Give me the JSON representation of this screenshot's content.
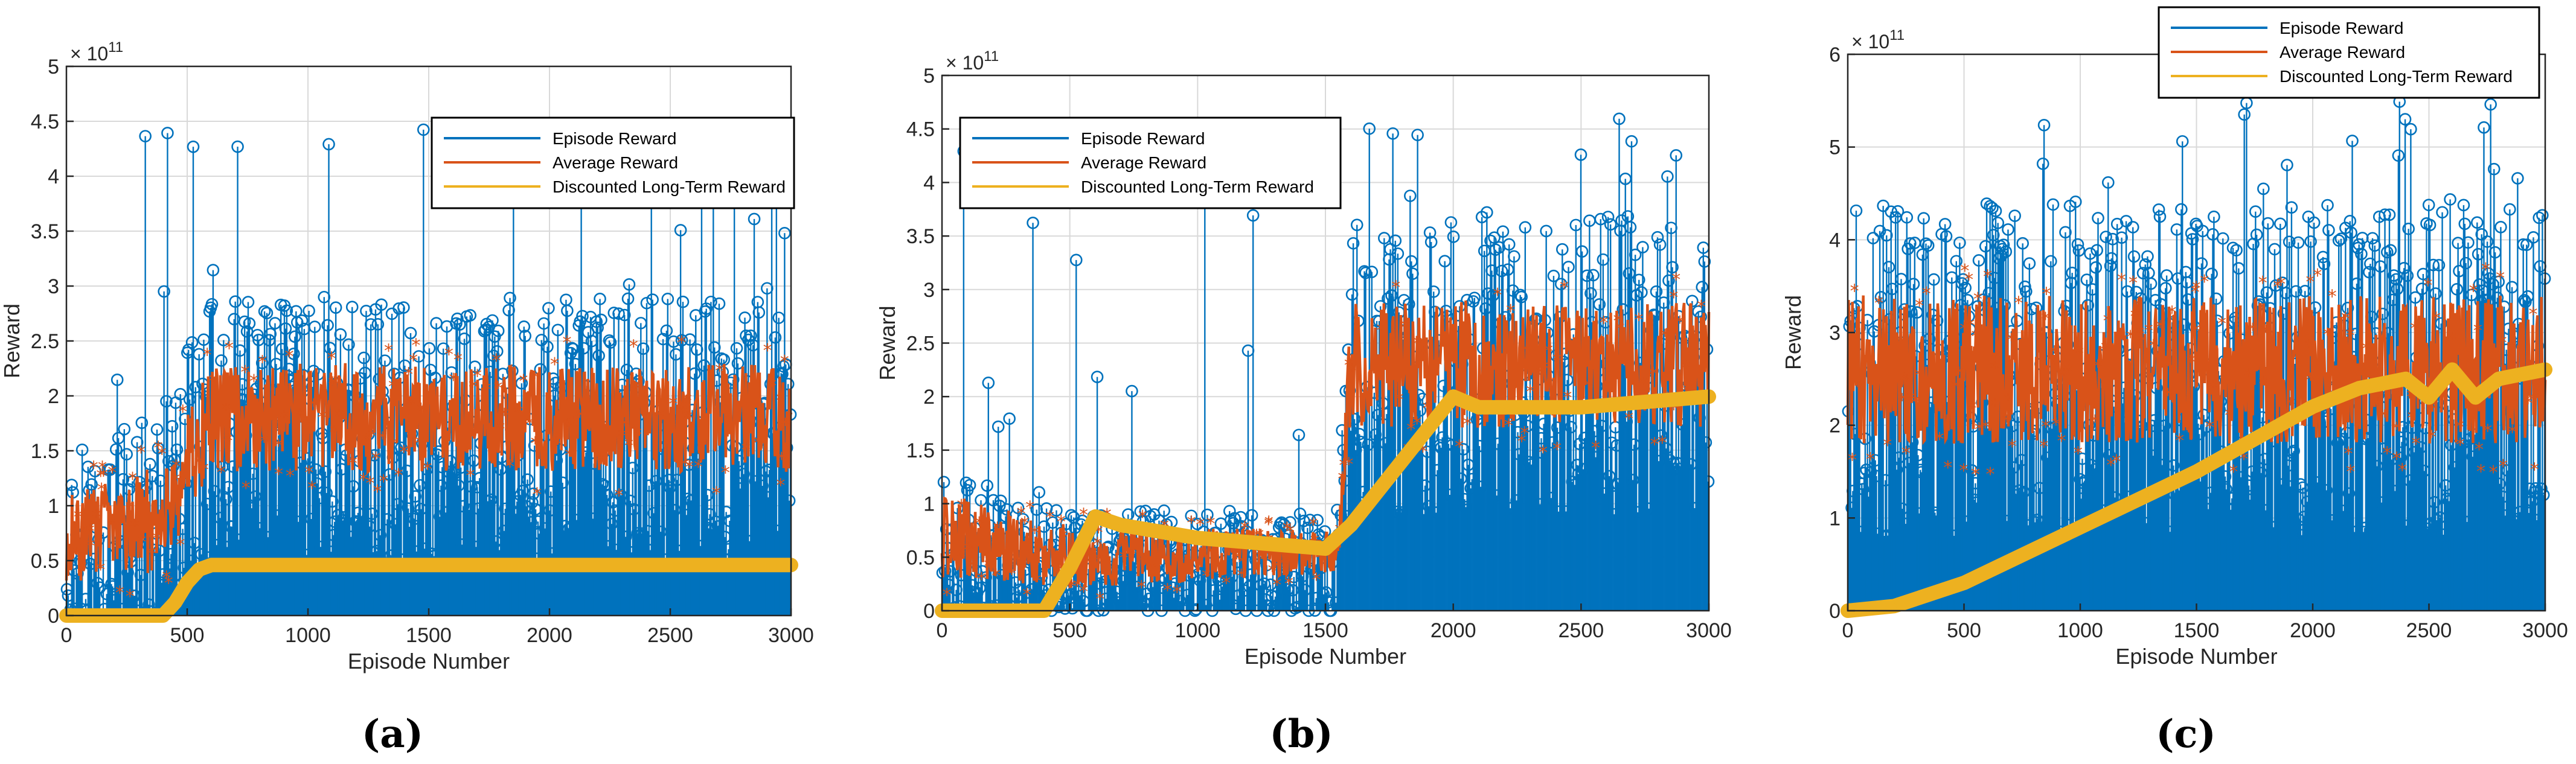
{
  "figure": {
    "panel_labels": [
      "(a)",
      "(b)",
      "(c)"
    ],
    "colors": {
      "episode": "#0072BD",
      "average": "#D95319",
      "discounted": "#EDB120",
      "axis": "#262626",
      "grid": "#d9d9d9"
    }
  },
  "chart_data": [
    {
      "type": "line",
      "panel": "(a)",
      "xlabel": "Episode Number",
      "ylabel": "Reward",
      "exponent_label": "× 10^11",
      "xlim": [
        0,
        3000
      ],
      "ylim": [
        0,
        5
      ],
      "xticks": [
        0,
        500,
        1000,
        1500,
        2000,
        2500,
        3000
      ],
      "xtick_labels": [
        "0",
        "500",
        "1000",
        "1500",
        "2000",
        "2500",
        "3000"
      ],
      "yticks": [
        0,
        0.5,
        1,
        1.5,
        2,
        2.5,
        3,
        3.5,
        4,
        4.5,
        5
      ],
      "ytick_labels": [
        "0",
        "0.5",
        "1",
        "1.5",
        "2",
        "2.5",
        "3",
        "3.5",
        "4",
        "4.5",
        "5"
      ],
      "legend": [
        "Episode Reward",
        "Average Reward",
        "Discounted Long-Term Reward"
      ],
      "legend_position": "top-right",
      "series": [
        {
          "name": "Episode Reward",
          "style": "stem",
          "approx_range": [
            0,
            4.6
          ],
          "profile_x": [
            0,
            400,
            600,
            3000
          ],
          "profile_mean": [
            0.6,
            0.9,
            1.7,
            1.7
          ],
          "profile_spread": [
            0.8,
            1.0,
            1.2,
            1.2
          ]
        },
        {
          "name": "Average Reward",
          "style": "line",
          "profile_x": [
            0,
            400,
            600,
            3000
          ],
          "profile_mean": [
            0.7,
            0.9,
            1.8,
            1.8
          ],
          "profile_spread": [
            0.4,
            0.5,
            0.5,
            0.5
          ]
        },
        {
          "name": "Discounted Long-Term Reward",
          "style": "line",
          "x": [
            0,
            400,
            450,
            500,
            550,
            600,
            3000
          ],
          "y": [
            0,
            0,
            0.12,
            0.3,
            0.42,
            0.46,
            0.46
          ]
        }
      ]
    },
    {
      "type": "line",
      "panel": "(b)",
      "xlabel": "Episode Number",
      "ylabel": "Reward",
      "exponent_label": "× 10^11",
      "xlim": [
        0,
        3000
      ],
      "ylim": [
        0,
        5
      ],
      "xticks": [
        0,
        500,
        1000,
        1500,
        2000,
        2500,
        3000
      ],
      "xtick_labels": [
        "0",
        "500",
        "1000",
        "1500",
        "2000",
        "2500",
        "3000"
      ],
      "yticks": [
        0,
        0.5,
        1,
        1.5,
        2,
        2.5,
        3,
        3.5,
        4,
        4.5,
        5
      ],
      "ytick_labels": [
        "0",
        "0.5",
        "1",
        "1.5",
        "2",
        "2.5",
        "3",
        "3.5",
        "4",
        "4.5",
        "5"
      ],
      "legend": [
        "Episode Reward",
        "Average Reward",
        "Discounted Long-Term Reward"
      ],
      "legend_position": "top-left",
      "series": [
        {
          "name": "Episode Reward",
          "style": "stem",
          "approx_range": [
            0,
            4.6
          ],
          "profile_x": [
            0,
            500,
            1550,
            1600,
            3000
          ],
          "profile_mean": [
            0.6,
            0.45,
            0.45,
            2.3,
            2.3
          ],
          "profile_spread": [
            0.7,
            0.5,
            0.5,
            1.4,
            1.4
          ]
        },
        {
          "name": "Average Reward",
          "style": "line",
          "profile_x": [
            0,
            500,
            1550,
            1600,
            3000
          ],
          "profile_mean": [
            0.7,
            0.5,
            0.55,
            2.3,
            2.3
          ],
          "profile_spread": [
            0.4,
            0.3,
            0.2,
            0.6,
            0.6
          ]
        },
        {
          "name": "Discounted Long-Term Reward",
          "style": "line",
          "x": [
            0,
            400,
            500,
            600,
            700,
            1000,
            1500,
            1600,
            1800,
            2000,
            2100,
            2500,
            3000
          ],
          "y": [
            0,
            0,
            0.4,
            0.88,
            0.8,
            0.68,
            0.58,
            0.8,
            1.4,
            2.0,
            1.9,
            1.9,
            2.0
          ]
        }
      ]
    },
    {
      "type": "line",
      "panel": "(c)",
      "xlabel": "Episode Number",
      "ylabel": "Reward",
      "exponent_label": "× 10^11",
      "xlim": [
        0,
        3000
      ],
      "ylim": [
        0,
        6
      ],
      "xticks": [
        0,
        500,
        1000,
        1500,
        2000,
        2500,
        3000
      ],
      "xtick_labels": [
        "0",
        "500",
        "1000",
        "1500",
        "2000",
        "2500",
        "3000"
      ],
      "yticks": [
        0,
        1,
        2,
        3,
        4,
        5,
        6
      ],
      "ytick_labels": [
        "0",
        "1",
        "2",
        "3",
        "4",
        "5",
        "6"
      ],
      "legend": [
        "Episode Reward",
        "Average Reward",
        "Discounted Long-Term Reward"
      ],
      "legend_position": "top-right",
      "series": [
        {
          "name": "Episode Reward",
          "style": "stem",
          "approx_range": [
            0,
            5.5
          ],
          "profile_x": [
            0,
            3000
          ],
          "profile_mean": [
            2.6,
            2.6
          ],
          "profile_spread": [
            1.8,
            1.8
          ]
        },
        {
          "name": "Average Reward",
          "style": "line",
          "profile_x": [
            0,
            3000
          ],
          "profile_mean": [
            2.6,
            2.6
          ],
          "profile_spread": [
            0.8,
            0.8
          ]
        },
        {
          "name": "Discounted Long-Term Reward",
          "style": "line",
          "x": [
            0,
            200,
            500,
            1000,
            1500,
            2000,
            2200,
            2400,
            2500,
            2600,
            2700,
            2800,
            3000
          ],
          "y": [
            0,
            0.05,
            0.3,
            0.9,
            1.5,
            2.2,
            2.4,
            2.5,
            2.3,
            2.6,
            2.3,
            2.5,
            2.6
          ]
        }
      ]
    }
  ]
}
